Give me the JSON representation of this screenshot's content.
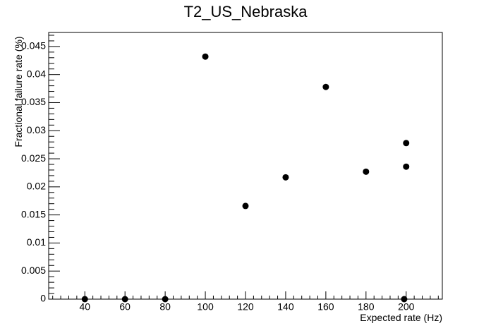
{
  "chart_data": {
    "type": "scatter",
    "title": "T2_US_Nebraska",
    "xlabel": "Expected rate (Hz)",
    "ylabel": "Fractional failure rate (%)",
    "xlim": [
      22,
      218
    ],
    "ylim": [
      0,
      0.0475
    ],
    "x_ticks": [
      40,
      60,
      80,
      100,
      120,
      140,
      160,
      180,
      200
    ],
    "x_tick_labels": [
      "40",
      "60",
      "80",
      "100",
      "120",
      "140",
      "160",
      "180",
      "200"
    ],
    "y_ticks": [
      0,
      0.005,
      0.01,
      0.015,
      0.02,
      0.025,
      0.03,
      0.035,
      0.04,
      0.045
    ],
    "y_tick_labels": [
      "0",
      "0.005",
      "0.01",
      "0.015",
      "0.02",
      "0.025",
      "0.03",
      "0.035",
      "0.04",
      "0.045"
    ],
    "grid": false,
    "marker_color": "#000000",
    "points": [
      {
        "x": 40,
        "y": 0
      },
      {
        "x": 60,
        "y": 0
      },
      {
        "x": 80,
        "y": 0
      },
      {
        "x": 100,
        "y": 0.0432
      },
      {
        "x": 120,
        "y": 0.0166
      },
      {
        "x": 140,
        "y": 0.0217
      },
      {
        "x": 160,
        "y": 0.0378
      },
      {
        "x": 180,
        "y": 0.0227
      },
      {
        "x": 199,
        "y": 0
      },
      {
        "x": 200,
        "y": 0.0278
      },
      {
        "x": 200,
        "y": 0.0236
      }
    ]
  }
}
